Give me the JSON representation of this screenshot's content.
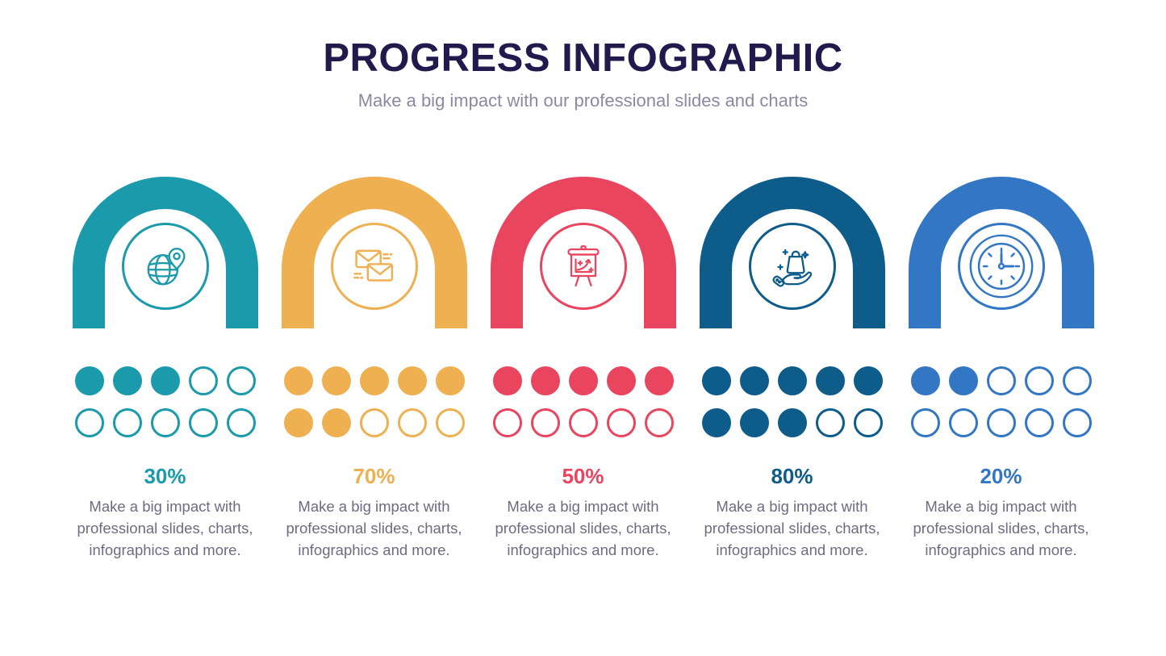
{
  "header": {
    "title": "PROGRESS INFOGRAPHIC",
    "subtitle": "Make a big impact with our professional slides and charts"
  },
  "theme": {
    "background_color": "#FFFFFF",
    "title_color": "#211A4D",
    "subtitle_color": "#8C88A1",
    "description_color": "#6F6B80"
  },
  "chart_data": {
    "type": "pictograph-progress",
    "title": "PROGRESS INFOGRAPHIC",
    "subtitle": "Make a big impact with our professional slides and charts",
    "categories": [
      "globe-location",
      "mail",
      "presentation-chart",
      "shopping-bag-hand",
      "clock"
    ],
    "values": [
      30,
      70,
      50,
      80,
      20
    ],
    "dots_per_item": 10,
    "dots_per_row": 5,
    "legend_position": "none",
    "items": [
      {
        "icon": "globe-location-icon",
        "value": 30,
        "percent_label": "30%",
        "color": "#1B9AAB",
        "dots_total": 10,
        "dots_filled": 3,
        "description": "Make a big impact with professional slides, charts, infographics and more."
      },
      {
        "icon": "mail-icon",
        "value": 70,
        "percent_label": "70%",
        "color": "#EFB052",
        "dots_total": 10,
        "dots_filled": 7,
        "description": "Make a big impact with professional slides, charts, infographics and more."
      },
      {
        "icon": "presentation-chart-icon",
        "value": 50,
        "percent_label": "50%",
        "color": "#E9455F",
        "dots_total": 10,
        "dots_filled": 5,
        "description": "Make a big impact with professional slides, charts, infographics and more."
      },
      {
        "icon": "shopping-bag-hand-icon",
        "value": 80,
        "percent_label": "80%",
        "color": "#0E5C8A",
        "dots_total": 10,
        "dots_filled": 8,
        "description": "Make a big impact with professional slides, charts, infographics and more."
      },
      {
        "icon": "clock-icon",
        "value": 20,
        "percent_label": "20%",
        "color": "#3377C4",
        "dots_total": 10,
        "dots_filled": 2,
        "description": "Make a big impact with professional slides, charts, infographics and more."
      }
    ]
  }
}
